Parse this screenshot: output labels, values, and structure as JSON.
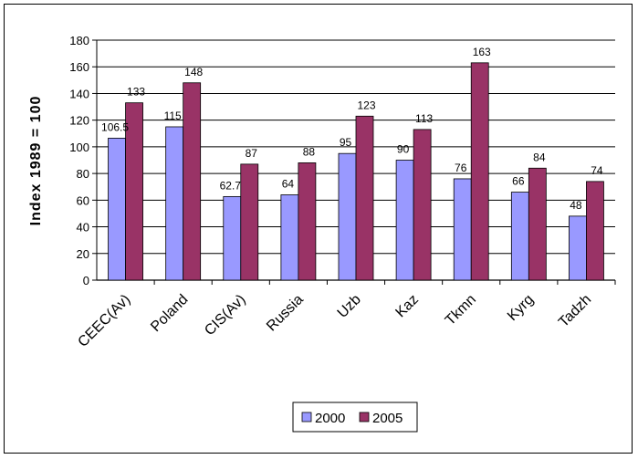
{
  "chart_data": {
    "type": "bar",
    "title": "",
    "xlabel": "",
    "ylabel": "Index 1989 = 100",
    "ylim": [
      0,
      180
    ],
    "yticks": [
      0,
      20,
      40,
      60,
      80,
      100,
      120,
      140,
      160,
      180
    ],
    "ytick_labels": [
      "0",
      "20",
      "40",
      "60",
      "80",
      "100",
      "120",
      "140",
      "160",
      "180"
    ],
    "grid": true,
    "legend_position": "bottom",
    "categories": [
      "CEEC(Av)",
      "Poland",
      "CIS(Av)",
      "Russia",
      "Uzb",
      "Kaz",
      "Tkmn",
      "Kyrg",
      "Tadzh"
    ],
    "series": [
      {
        "name": "2000",
        "color": "#9999ff",
        "values": [
          106.5,
          115,
          62.7,
          64,
          95,
          90,
          76,
          66,
          48
        ],
        "labels": [
          "106.5",
          "115",
          "62.7",
          "64",
          "95",
          "90",
          "76",
          "66",
          "48"
        ]
      },
      {
        "name": "2005",
        "color": "#993366",
        "values": [
          133,
          148,
          87,
          88,
          123,
          113,
          163,
          84,
          74
        ],
        "labels": [
          "133",
          "148",
          "87",
          "88",
          "123",
          "113",
          "163",
          "84",
          "74"
        ]
      }
    ]
  }
}
